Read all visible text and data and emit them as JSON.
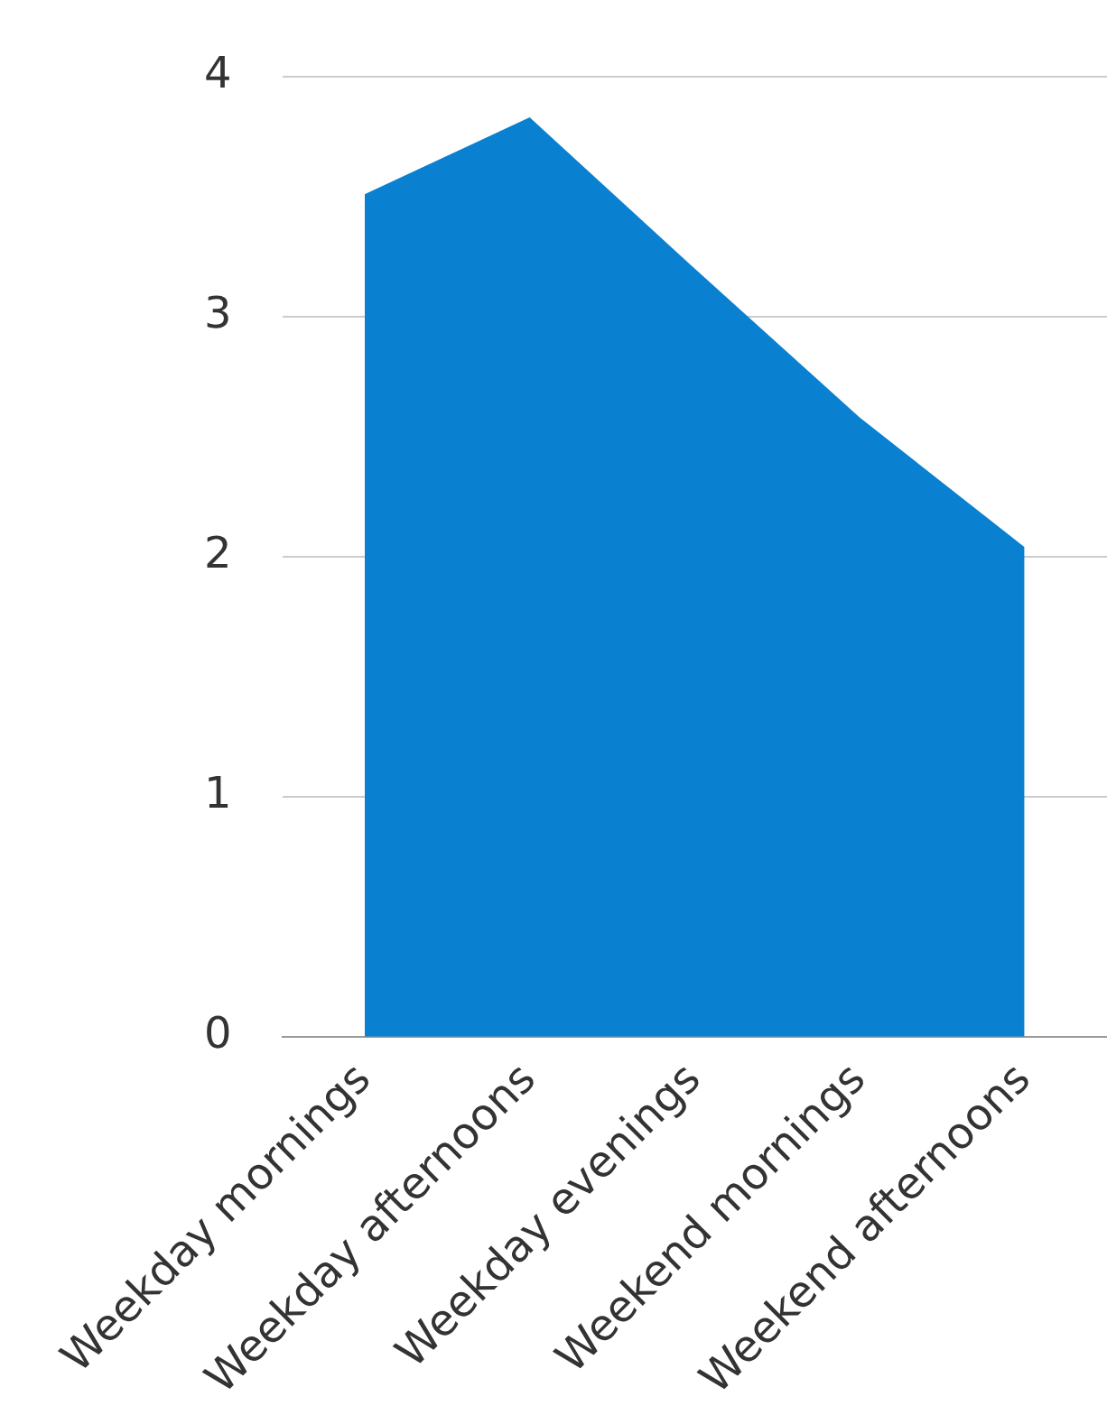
{
  "chart_data": {
    "type": "area",
    "categories": [
      "Weekday mornings",
      "Weekday afternoons",
      "Weekday evenings",
      "Weekend mornings",
      "Weekend afternoons"
    ],
    "values": [
      3.51,
      3.83,
      3.2,
      2.58,
      2.04
    ],
    "color": "#0a80d0",
    "ylim": [
      0,
      4
    ],
    "yticks": [
      0,
      1,
      2,
      3,
      4
    ],
    "grid": "y"
  }
}
